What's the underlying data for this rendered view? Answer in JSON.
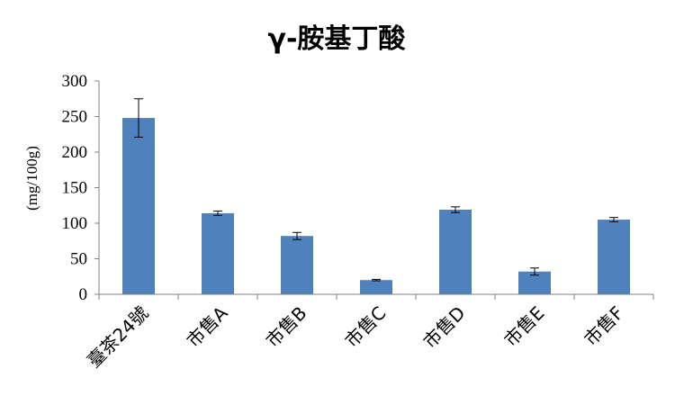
{
  "chart_data": {
    "type": "bar",
    "title": "γ-胺基丁酸",
    "xlabel": "",
    "ylabel": "(mg/100g)",
    "ylim": [
      0,
      300
    ],
    "yticks": [
      0,
      50,
      100,
      150,
      200,
      250,
      300
    ],
    "categories": [
      "臺茶24號",
      "市售A",
      "市售B",
      "市售C",
      "市售D",
      "市售E",
      "市售F"
    ],
    "values": [
      248,
      114,
      82,
      20,
      119,
      32,
      105
    ],
    "errors": [
      27,
      3,
      5,
      1,
      4,
      5,
      3
    ],
    "grid": false,
    "legend": "none",
    "bar_color": "#4f81bd"
  }
}
